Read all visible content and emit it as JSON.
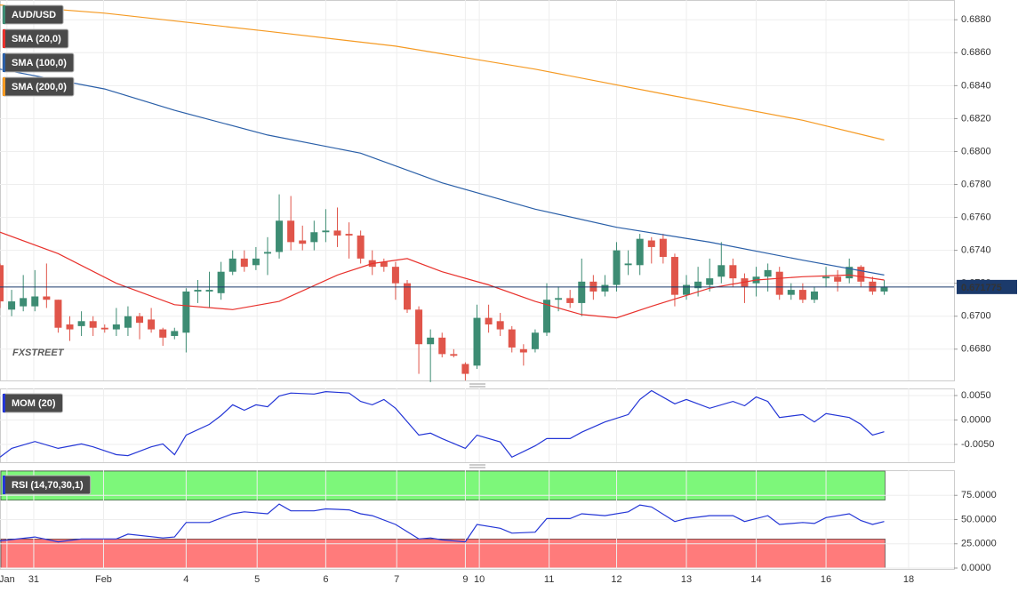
{
  "chart_data": [
    {
      "type": "candlestick",
      "watermark": "FXSTREET",
      "xlim": [
        0,
        82
      ],
      "ylim": [
        0.6661,
        0.6892
      ],
      "yticks": [
        {
          "value": 0.668,
          "label": "0.6680"
        },
        {
          "value": 0.67,
          "label": "0.6700"
        },
        {
          "value": 0.672,
          "label": "0.6720"
        },
        {
          "value": 0.674,
          "label": "0.6740"
        },
        {
          "value": 0.676,
          "label": "0.6760"
        },
        {
          "value": 0.678,
          "label": "0.6780"
        },
        {
          "value": 0.68,
          "label": "0.6800"
        },
        {
          "value": 0.682,
          "label": "0.6820"
        },
        {
          "value": 0.684,
          "label": "0.6840"
        },
        {
          "value": 0.686,
          "label": "0.6860"
        },
        {
          "value": 0.688,
          "label": "0.6880"
        }
      ],
      "grid": true,
      "last_price": 0.671775,
      "last_price_color": "#1b3a6b",
      "candles": {
        "name": "AUD/USD",
        "up_color": "#3d8c73",
        "down_color": "#e0554a",
        "open": [
          0.6731,
          0.6704,
          0.6706,
          0.6706,
          0.6712,
          0.671,
          0.6695,
          0.6694,
          0.6697,
          0.6693,
          0.6692,
          0.6693,
          0.67,
          0.6698,
          0.6692,
          0.6688,
          0.669,
          0.6715,
          0.6715,
          0.6714,
          0.6727,
          0.6735,
          0.6731,
          0.6738,
          0.6739,
          0.6758,
          0.6746,
          0.6745,
          0.6751,
          0.6752,
          0.675,
          0.6749,
          0.6734,
          0.6733,
          0.673,
          0.672,
          0.6704,
          0.6683,
          0.6687,
          0.6677,
          0.6671,
          0.667,
          0.6699,
          0.6697,
          0.6692,
          0.668,
          0.668,
          0.669,
          0.671,
          0.6711,
          0.6708,
          0.6721,
          0.6715,
          0.6719,
          0.6731,
          0.6731,
          0.6746,
          0.6747,
          0.6736,
          0.6713,
          0.6717,
          0.6719,
          0.6724,
          0.6731,
          0.6723,
          0.672,
          0.6724,
          0.6727,
          0.6713,
          0.6716,
          0.671,
          0.6723,
          0.6724,
          0.6723,
          0.673,
          0.6721,
          0.6715
        ],
        "high": [
          0.6732,
          0.6716,
          0.6725,
          0.6728,
          0.6732,
          0.671,
          0.67,
          0.6703,
          0.67,
          0.6695,
          0.6705,
          0.6706,
          0.6702,
          0.6705,
          0.6693,
          0.6693,
          0.6717,
          0.6722,
          0.6727,
          0.6733,
          0.674,
          0.674,
          0.6742,
          0.6748,
          0.6774,
          0.6773,
          0.6755,
          0.6758,
          0.6765,
          0.6766,
          0.6757,
          0.6752,
          0.674,
          0.6735,
          0.6733,
          0.6722,
          0.6706,
          0.6692,
          0.669,
          0.668,
          0.6672,
          0.6707,
          0.6707,
          0.6702,
          0.6694,
          0.6683,
          0.6692,
          0.672,
          0.6718,
          0.6716,
          0.6735,
          0.6725,
          0.6725,
          0.6745,
          0.674,
          0.675,
          0.6748,
          0.675,
          0.6738,
          0.6725,
          0.673,
          0.6735,
          0.6745,
          0.6735,
          0.6726,
          0.673,
          0.6732,
          0.673,
          0.672,
          0.672,
          0.6718,
          0.673,
          0.6728,
          0.6735,
          0.6731,
          0.6724,
          0.6722
        ],
        "low": [
          0.6705,
          0.67,
          0.6703,
          0.6703,
          0.6705,
          0.669,
          0.6685,
          0.6688,
          0.6688,
          0.669,
          0.6688,
          0.6688,
          0.6686,
          0.669,
          0.6682,
          0.6686,
          0.6678,
          0.6708,
          0.6705,
          0.671,
          0.6725,
          0.6727,
          0.6728,
          0.6725,
          0.6735,
          0.674,
          0.674,
          0.674,
          0.6745,
          0.6742,
          0.6735,
          0.6732,
          0.6725,
          0.6727,
          0.671,
          0.6702,
          0.6665,
          0.666,
          0.6675,
          0.6675,
          0.6661,
          0.6668,
          0.669,
          0.6688,
          0.6678,
          0.667,
          0.6678,
          0.6688,
          0.6703,
          0.6705,
          0.67,
          0.671,
          0.6712,
          0.6715,
          0.6725,
          0.6725,
          0.6732,
          0.6732,
          0.6706,
          0.671,
          0.6712,
          0.6715,
          0.672,
          0.6718,
          0.6708,
          0.6712,
          0.6715,
          0.671,
          0.671,
          0.6708,
          0.6708,
          0.6718,
          0.6715,
          0.672,
          0.6718,
          0.6713,
          0.6713
        ],
        "close": [
          0.6709,
          0.6709,
          0.6711,
          0.6712,
          0.671,
          0.6693,
          0.6692,
          0.6697,
          0.6693,
          0.6692,
          0.6695,
          0.67,
          0.6696,
          0.6692,
          0.6687,
          0.6691,
          0.6715,
          0.6716,
          0.6716,
          0.6727,
          0.6735,
          0.673,
          0.6735,
          0.6739,
          0.6758,
          0.6745,
          0.6744,
          0.6751,
          0.6752,
          0.6749,
          0.6749,
          0.6735,
          0.673,
          0.673,
          0.672,
          0.6704,
          0.6683,
          0.6687,
          0.6677,
          0.6676,
          0.6665,
          0.6699,
          0.6695,
          0.6692,
          0.6681,
          0.6678,
          0.669,
          0.671,
          0.6711,
          0.6708,
          0.6721,
          0.6715,
          0.6719,
          0.674,
          0.6732,
          0.6747,
          0.6742,
          0.6736,
          0.6713,
          0.6719,
          0.6721,
          0.6723,
          0.6731,
          0.6723,
          0.6718,
          0.6724,
          0.6728,
          0.6713,
          0.6716,
          0.671,
          0.6715,
          0.6724,
          0.6721,
          0.673,
          0.6721,
          0.6715,
          0.6718
        ]
      },
      "series": [
        {
          "name": "SMA (20,0)",
          "color": "#e8312c",
          "x": [
            0,
            5,
            10,
            15,
            20,
            24,
            29,
            32,
            35,
            38,
            42,
            46,
            50,
            53,
            56,
            61,
            65,
            69,
            73,
            76
          ],
          "values": [
            0.6751,
            0.6738,
            0.672,
            0.6707,
            0.6704,
            0.6709,
            0.6725,
            0.6732,
            0.6735,
            0.6727,
            0.6719,
            0.6709,
            0.6701,
            0.6699,
            0.6706,
            0.6717,
            0.6722,
            0.6724,
            0.6725,
            0.6722
          ]
        },
        {
          "name": "SMA (100,0)",
          "color": "#2a5fa8",
          "x": [
            0,
            9,
            15,
            23,
            31,
            38,
            46,
            53,
            61,
            69,
            76
          ],
          "values": [
            0.685,
            0.6838,
            0.6825,
            0.681,
            0.6799,
            0.6781,
            0.6765,
            0.6754,
            0.6745,
            0.6734,
            0.6725
          ]
        },
        {
          "name": "SMA (200,0)",
          "color": "#f59a23",
          "x": [
            0,
            9,
            23,
            34,
            46,
            57,
            69,
            76
          ],
          "values": [
            0.6889,
            0.6884,
            0.6873,
            0.6864,
            0.685,
            0.6835,
            0.6819,
            0.6807
          ]
        }
      ]
    },
    {
      "type": "line",
      "xlim": [
        0,
        82
      ],
      "ylim": [
        -0.00864,
        0.00645
      ],
      "yticks": [
        {
          "value": -0.005,
          "label": "-0.0050"
        },
        {
          "value": 0,
          "label": "0.0000"
        },
        {
          "value": 0.005,
          "label": "0.0050"
        }
      ],
      "grid": true,
      "series": [
        {
          "name": "MOM (20)",
          "color": "#2436d6",
          "x": [
            0,
            1,
            3,
            5,
            7,
            8,
            10,
            11,
            13,
            14,
            15,
            16,
            18,
            19,
            20,
            21,
            22,
            23,
            24,
            25,
            27,
            28,
            30,
            31,
            32,
            33,
            34,
            36,
            37,
            38,
            40,
            41,
            43,
            44,
            46,
            47,
            49,
            50,
            52,
            54,
            55,
            56,
            58,
            59,
            61,
            63,
            64,
            65,
            66,
            67,
            69,
            70,
            71,
            73,
            74,
            75,
            76
          ],
          "values": [
            -0.0076,
            -0.0058,
            -0.0044,
            -0.0058,
            -0.0049,
            -0.0055,
            -0.0071,
            -0.0073,
            -0.0055,
            -0.0049,
            -0.0071,
            -0.0031,
            -0.0009,
            0.0009,
            0.0031,
            0.002,
            0.0031,
            0.0027,
            0.0049,
            0.0055,
            0.0053,
            0.0058,
            0.0055,
            0.0038,
            0.0031,
            0.0042,
            0.0024,
            -0.0031,
            -0.0027,
            -0.0038,
            -0.0058,
            -0.0031,
            -0.0045,
            -0.0076,
            -0.0053,
            -0.0038,
            -0.0038,
            -0.0025,
            -0.0004,
            0.0011,
            0.0042,
            0.006,
            0.0033,
            0.0042,
            0.0024,
            0.0038,
            0.0029,
            0.0047,
            0.0038,
            0.0005,
            0.0011,
            -0.0004,
            0.0013,
            0.0005,
            -0.0009,
            -0.0031,
            -0.0024
          ]
        }
      ]
    },
    {
      "type": "line",
      "xlim": [
        0,
        82
      ],
      "ylim": [
        -0.9,
        100.9
      ],
      "yticks": [
        {
          "value": 0,
          "label": "0.0000"
        },
        {
          "value": 25,
          "label": "25.0000"
        },
        {
          "value": 50,
          "label": "50.0000"
        },
        {
          "value": 75,
          "label": "75.0000"
        }
      ],
      "grid": true,
      "bands": [
        {
          "from": 70,
          "to": 100,
          "color": "#7df77a"
        },
        {
          "from": 0,
          "to": 30,
          "color": "#ff7b7b"
        }
      ],
      "xticks": [
        {
          "value": 0.6,
          "label": "Jan"
        },
        {
          "value": 2.9,
          "label": "31"
        },
        {
          "value": 8.9,
          "label": "Feb"
        },
        {
          "value": 16.0,
          "label": "4"
        },
        {
          "value": 22.1,
          "label": "5"
        },
        {
          "value": 28.0,
          "label": "6"
        },
        {
          "value": 34.1,
          "label": "7"
        },
        {
          "value": 40.0,
          "label": "9"
        },
        {
          "value": 41.2,
          "label": "10"
        },
        {
          "value": 47.2,
          "label": "11"
        },
        {
          "value": 53.0,
          "label": "12"
        },
        {
          "value": 59.0,
          "label": "13"
        },
        {
          "value": 65.0,
          "label": "14"
        },
        {
          "value": 71.0,
          "label": "16"
        },
        {
          "value": 78.1,
          "label": "18"
        }
      ],
      "series": [
        {
          "name": "RSI (14,70,30,1)",
          "color": "#2436d6",
          "x": [
            0,
            3,
            5,
            7,
            10,
            11,
            14,
            15,
            16,
            18,
            20,
            21,
            23,
            24,
            25,
            27,
            28,
            30,
            31,
            32,
            34,
            36,
            37,
            38,
            40,
            41,
            43,
            44,
            46,
            47,
            49,
            50,
            52,
            54,
            55,
            56,
            58,
            59,
            61,
            63,
            64,
            66,
            67,
            69,
            70,
            71,
            73,
            74,
            75,
            76
          ],
          "values": [
            28,
            32,
            27,
            30,
            30,
            35,
            31,
            32,
            47,
            47,
            56,
            58,
            56,
            66,
            59,
            59,
            61,
            60,
            56,
            54,
            45,
            30,
            31,
            29,
            27,
            45,
            41,
            36,
            37,
            51,
            51,
            56,
            54,
            58,
            65,
            63,
            48,
            51,
            54,
            54,
            48,
            54,
            45,
            47,
            46,
            52,
            56,
            49,
            45,
            48
          ]
        }
      ]
    }
  ]
}
